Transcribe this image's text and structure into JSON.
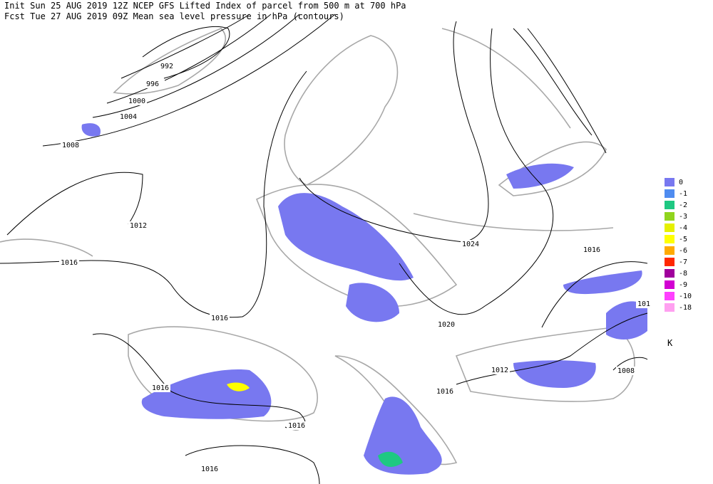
{
  "header": {
    "line1": "Init  Sun 25 AUG 2019 12Z  NCEP GFS Lifted Index of parcel from 500 m at 700 hPa",
    "line2": "Fcst Tue 27 AUG 2019 09Z  Mean sea level pressure in hPa (contours)"
  },
  "contour_labels": [
    992,
    996,
    1000,
    1004,
    1008,
    1012,
    1016,
    1016,
    1024,
    1020,
    1016,
    1016,
    1016,
    1016,
    1012,
    1008,
    1016,
    "101"
  ],
  "legend": {
    "unit": "K",
    "entries": [
      {
        "value": 0,
        "color": "#7878f0"
      },
      {
        "value": -1,
        "color": "#4f8cf0"
      },
      {
        "value": -2,
        "color": "#1ec882"
      },
      {
        "value": -3,
        "color": "#90d41e"
      },
      {
        "value": -4,
        "color": "#e6f000"
      },
      {
        "value": -5,
        "color": "#ffff00"
      },
      {
        "value": -6,
        "color": "#ffaa00"
      },
      {
        "value": -7,
        "color": "#ff2800"
      },
      {
        "value": -8,
        "color": "#a0009c"
      },
      {
        "value": -9,
        "color": "#d200d2"
      },
      {
        "value": -10,
        "color": "#ff40ff"
      },
      {
        "value": -18,
        "color": "#ffa0f0"
      }
    ]
  }
}
